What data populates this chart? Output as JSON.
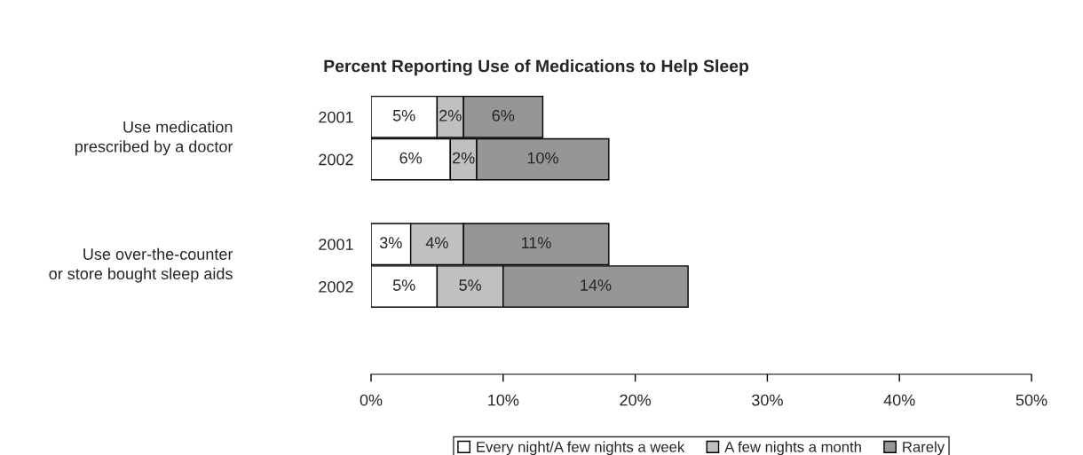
{
  "chart_data": {
    "type": "bar",
    "orientation": "horizontal",
    "stacked": true,
    "title": "Percent Reporting Use of Medications to Help Sleep",
    "categories": [
      "2001",
      "2002",
      null,
      "2001",
      "2002"
    ],
    "annotations": [
      "Use medication\nprescribed by a doctor",
      "Use over-the-counter\nor store bought sleep aids"
    ],
    "series": [
      {
        "name": "Every night/A few nights a week",
        "color": "#ffffff",
        "values": [
          5,
          6,
          null,
          3,
          5
        ],
        "value_labels": [
          "5%",
          "6%",
          null,
          "3%",
          "5%"
        ]
      },
      {
        "name": "A few nights a month",
        "color": "#c0c0c0",
        "values": [
          2,
          2,
          null,
          4,
          5
        ],
        "value_labels": [
          "2%",
          "2%",
          null,
          "4%",
          "5%"
        ]
      },
      {
        "name": "Rarely",
        "color": "#969696",
        "values": [
          6,
          10,
          null,
          11,
          14
        ],
        "value_labels": [
          "6%",
          "10%",
          null,
          "11%",
          "14%"
        ]
      }
    ],
    "xlim": [
      0,
      50
    ],
    "xticks": [
      {
        "value": 0,
        "label": "0%"
      },
      {
        "value": 10,
        "label": "10%"
      },
      {
        "value": 20,
        "label": "20%"
      },
      {
        "value": 30,
        "label": "30%"
      },
      {
        "value": 40,
        "label": "40%"
      },
      {
        "value": 50,
        "label": "50%"
      }
    ],
    "grid": false,
    "legend": "bottom"
  }
}
